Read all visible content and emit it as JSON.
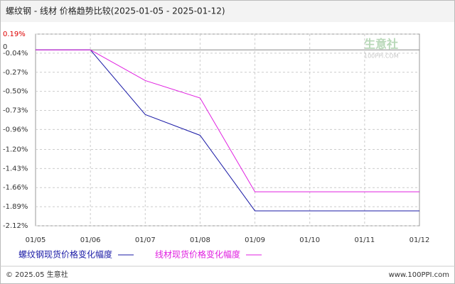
{
  "chart_data": {
    "type": "line",
    "title": "螺纹钢 - 线材 价格趋势比较(2025-01-05 - 2025-01-12)",
    "categories": [
      "01/05",
      "01/06",
      "01/07",
      "01/08",
      "01/09",
      "01/10",
      "01/11",
      "01/12"
    ],
    "series": [
      {
        "name": "螺纹钢现货价格变化幅度",
        "color": "#1a1aa6",
        "values": [
          0,
          0,
          -0.78,
          -1.03,
          -1.94,
          -1.94,
          -1.94,
          -1.94
        ]
      },
      {
        "name": "线材现货价格变化幅度",
        "color": "#e020e0",
        "values": [
          0,
          0,
          -0.37,
          -0.58,
          -1.71,
          -1.71,
          -1.71,
          -1.71
        ]
      }
    ],
    "ylim": [
      -2.12,
      0.19
    ],
    "yticks": [
      {
        "value": 0.19,
        "label": "0.19%"
      },
      {
        "value": -0.04,
        "label": "-0.04%"
      },
      {
        "value": -0.27,
        "label": "-0.27%"
      },
      {
        "value": -0.5,
        "label": "-0.50%"
      },
      {
        "value": -0.73,
        "label": "-0.73%"
      },
      {
        "value": -0.96,
        "label": "-0.96%"
      },
      {
        "value": -1.2,
        "label": "-1.20%"
      },
      {
        "value": -1.43,
        "label": "-1.43%"
      },
      {
        "value": -1.66,
        "label": "-1.66%"
      },
      {
        "value": -1.89,
        "label": "-1.89%"
      },
      {
        "value": -2.12,
        "label": "-2.12%"
      }
    ],
    "zero_line": {
      "value": 0,
      "label": "0"
    },
    "grid": true,
    "watermark": [
      "生意社",
      "100PPI.COM"
    ],
    "footer_left": "© 2025.05 生意社",
    "footer_right": "www.100PPI.com"
  }
}
